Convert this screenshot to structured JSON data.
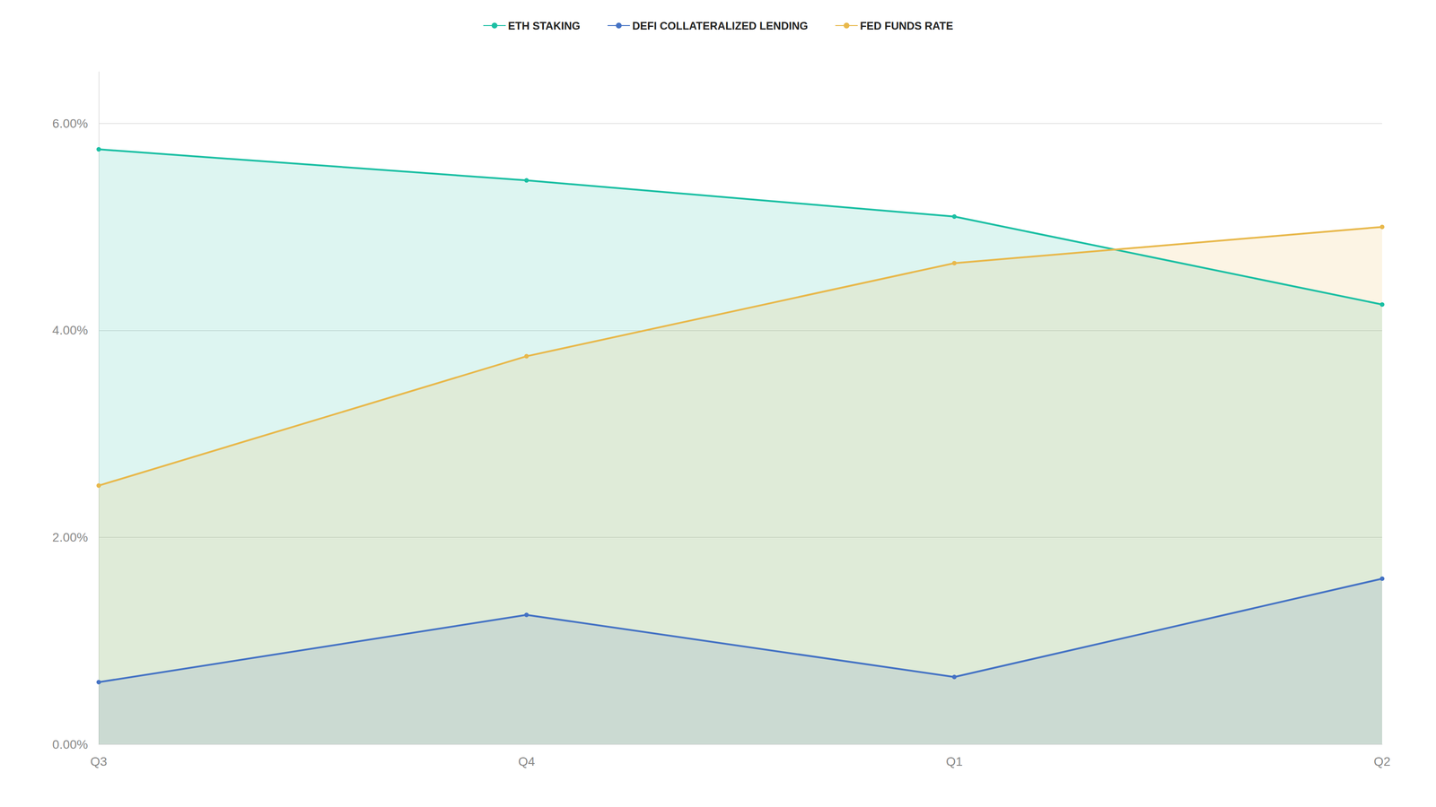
{
  "chart_data": {
    "type": "line",
    "categories": [
      "Q3",
      "Q4",
      "Q1",
      "Q2"
    ],
    "series": [
      {
        "name": "ETH STAKING",
        "color": "#1ABFA3",
        "values": [
          5.75,
          5.45,
          5.1,
          4.25
        ]
      },
      {
        "name": "DEFI COLLATERALIZED LENDING",
        "color": "#4472C4",
        "values": [
          0.6,
          1.25,
          0.65,
          1.6
        ]
      },
      {
        "name": "FED FUNDS RATE",
        "color": "#E8B84B",
        "values": [
          2.5,
          3.75,
          4.65,
          5.0
        ]
      }
    ],
    "ylim": [
      0,
      6.5
    ],
    "yticks": [
      {
        "value": 0,
        "label": "0.00%"
      },
      {
        "value": 2,
        "label": "2.00%"
      },
      {
        "value": 4,
        "label": "4.00%"
      },
      {
        "value": 6,
        "label": "6.00%"
      }
    ],
    "grid": true,
    "legend": "top"
  }
}
